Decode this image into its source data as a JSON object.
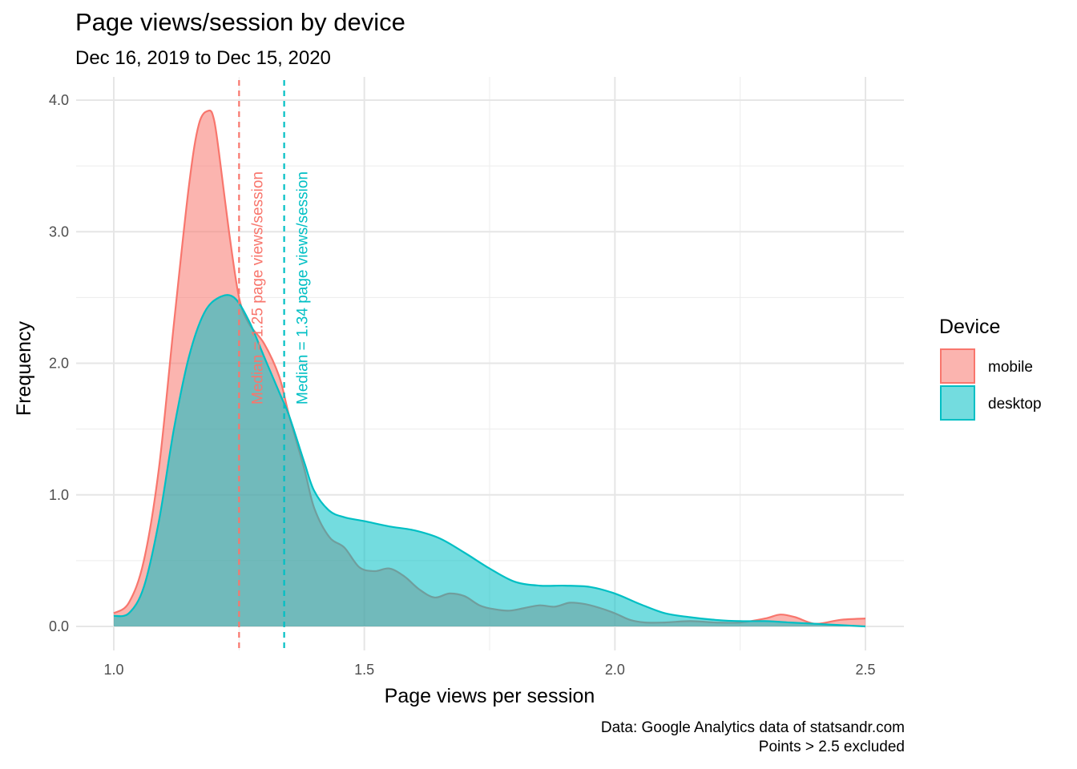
{
  "chart_data": {
    "type": "area",
    "title": "Page views/session by device",
    "subtitle": "Dec 16, 2019 to Dec 15, 2020",
    "xlabel": "Page views per session",
    "ylabel": "Frequency",
    "caption": [
      "Data: Google Analytics data of statsandr.com",
      "Points > 2.5 excluded"
    ],
    "xlim": [
      1.0,
      2.5
    ],
    "ylim": [
      0.0,
      4.0
    ],
    "x_ticks": [
      1.0,
      1.5,
      2.0,
      2.5
    ],
    "x_tick_labels": [
      "1.0",
      "1.5",
      "2.0",
      "2.5"
    ],
    "y_ticks": [
      0.0,
      1.0,
      2.0,
      3.0,
      4.0
    ],
    "y_tick_labels": [
      "0.0",
      "1.0",
      "2.0",
      "3.0",
      "4.0"
    ],
    "grid": true,
    "legend": {
      "title": "Device",
      "position": "right"
    },
    "series": [
      {
        "name": "mobile",
        "color": "#F8766D",
        "median": 1.25,
        "annotation": "Median = 1.25 page views/session",
        "x": [
          1.0,
          1.03,
          1.06,
          1.09,
          1.12,
          1.15,
          1.17,
          1.19,
          1.2,
          1.21,
          1.23,
          1.25,
          1.27,
          1.3,
          1.33,
          1.35,
          1.38,
          1.4,
          1.43,
          1.46,
          1.49,
          1.52,
          1.55,
          1.58,
          1.61,
          1.64,
          1.67,
          1.7,
          1.73,
          1.76,
          1.79,
          1.82,
          1.85,
          1.88,
          1.91,
          1.94,
          1.97,
          2.0,
          2.03,
          2.06,
          2.1,
          2.15,
          2.2,
          2.25,
          2.3,
          2.33,
          2.36,
          2.4,
          2.45,
          2.5
        ],
        "y": [
          0.1,
          0.18,
          0.5,
          1.2,
          2.3,
          3.35,
          3.82,
          3.92,
          3.85,
          3.6,
          3.0,
          2.5,
          2.3,
          2.15,
          1.9,
          1.6,
          1.2,
          0.9,
          0.68,
          0.6,
          0.45,
          0.42,
          0.44,
          0.38,
          0.28,
          0.22,
          0.25,
          0.23,
          0.16,
          0.13,
          0.12,
          0.14,
          0.16,
          0.15,
          0.18,
          0.17,
          0.14,
          0.1,
          0.05,
          0.03,
          0.03,
          0.04,
          0.03,
          0.03,
          0.06,
          0.09,
          0.07,
          0.02,
          0.05,
          0.06
        ]
      },
      {
        "name": "desktop",
        "color": "#00BFC4",
        "median": 1.34,
        "annotation": "Median = 1.34 page views/session",
        "x": [
          1.0,
          1.03,
          1.06,
          1.09,
          1.12,
          1.15,
          1.18,
          1.21,
          1.24,
          1.27,
          1.3,
          1.33,
          1.35,
          1.38,
          1.4,
          1.43,
          1.46,
          1.5,
          1.55,
          1.6,
          1.65,
          1.7,
          1.75,
          1.8,
          1.85,
          1.9,
          1.95,
          2.0,
          2.05,
          2.1,
          2.15,
          2.2,
          2.25,
          2.3,
          2.35,
          2.4,
          2.45,
          2.5
        ],
        "y": [
          0.08,
          0.1,
          0.3,
          0.8,
          1.5,
          2.05,
          2.38,
          2.5,
          2.5,
          2.32,
          2.05,
          1.78,
          1.6,
          1.25,
          1.03,
          0.88,
          0.83,
          0.8,
          0.76,
          0.73,
          0.67,
          0.56,
          0.44,
          0.34,
          0.31,
          0.31,
          0.3,
          0.25,
          0.17,
          0.1,
          0.07,
          0.05,
          0.04,
          0.04,
          0.03,
          0.02,
          0.01,
          0.0
        ]
      }
    ]
  }
}
